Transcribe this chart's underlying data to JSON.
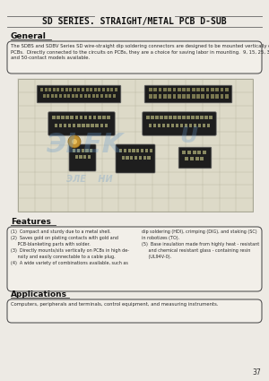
{
  "title": "SD SERIES. STRAIGHT/METAL PCB D-SUB",
  "bg_color": "#edeae4",
  "page_number": "37",
  "general_heading": "General",
  "general_text": "The SDBS and SDBV Series SD wire-straight dip soldering connectors are designed to be mounted vertically on\nPCBs.  Directly connected to the circuits on PCBs, they are a choice for saving labor in mounting.  9, 15, 25, 37,\nand 50-contact models available.",
  "features_heading": "Features",
  "features_col1": "(1)  Compact and sturdy due to a metal shell.\n(2)  Saves gold on plating contacts with gold and\n     PCB-blanketing parts with solder.\n(3)  Directly mounts/sits vertically on PCBs in high de-\n     nsity and easily connectable to a cable plug.\n(4)  A wide variety of combinations available, such as",
  "features_col2_top": "dip soldering (HDI), crimping (DIG), and staking (SC)\nin robotizes (TO).",
  "features_col2_bot": "(5)  Base insulation made from highly heat - resistant\n     and chemical resistant glass - containing resin\n     (UL94V-0).",
  "applications_heading": "Applications",
  "applications_text": "Computers, peripherals and terminals, control equipment, and measuring instruments.",
  "watermark1": "ЭLEK",
  "watermark2": "U",
  "watermark_color": "#6699cc",
  "watermark3": "ЭЛЕ    НИ",
  "line_color": "#666666",
  "box_bg": "#f2efe9",
  "box_ec": "#555555",
  "text_color": "#2a2a2a",
  "grid_bg": "#dddac8",
  "grid_line": "#b8b5a0"
}
